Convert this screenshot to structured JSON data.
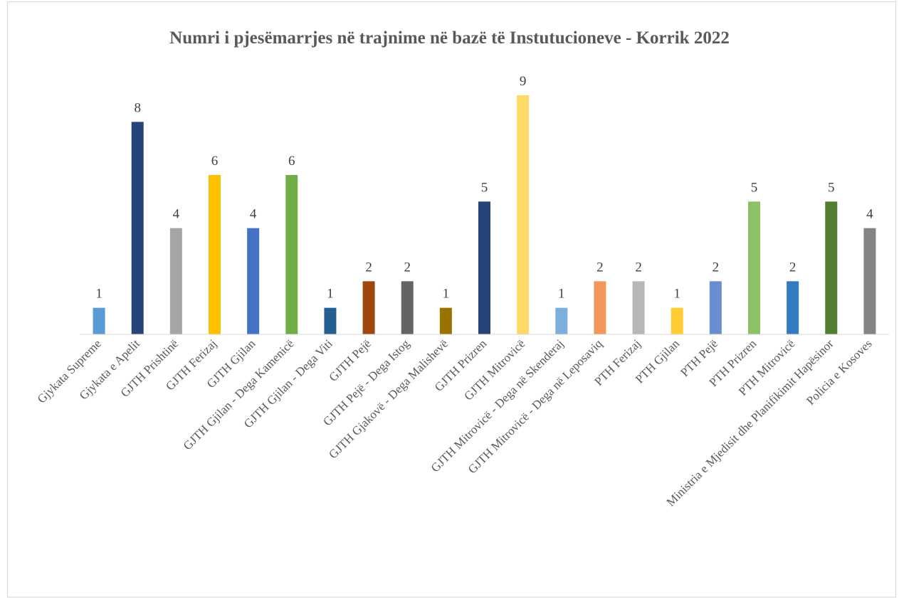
{
  "chart_data": {
    "type": "bar",
    "title": "Numri  i pjesëmarrjes  në trajnime  në bazë të Instutucioneve  - Korrik 2022",
    "xlabel": "",
    "ylabel": "",
    "ylim": [
      0,
      9
    ],
    "grid": false,
    "legend": "none",
    "categories": [
      "Gjykata Supreme",
      "Gjykata e Apelit",
      "GJTH Prishtinë",
      "GJTH Ferizaj",
      "GJTH Gjilan",
      "GJTH Gjilan - Dega Kamenicë",
      "GJTH Gjilan - Dega Viti",
      "GJTH Pejë",
      "GJTH Pejë - Dega Istog",
      "GJTH Gjakovë - Dega Malishevë",
      "GJTH Prizren",
      "GJTH Mitrovicë",
      "GJTH Mitrovicë - Dega në Skenderaj",
      "GJTH Mitrovicë - Dega në Leposaviq",
      "PTH Ferizaj",
      "PTH Gjilan",
      "PTH Pejë",
      "PTH Prizren",
      "PTH  Mitrovicë",
      "Ministria e Mjedisit dhe Planifikimit Hapësinor",
      "Policia e Kosoves"
    ],
    "values": [
      1,
      8,
      4,
      6,
      4,
      6,
      1,
      2,
      2,
      1,
      5,
      9,
      1,
      2,
      2,
      1,
      2,
      5,
      2,
      5,
      4
    ],
    "value_labels": [
      "1",
      "8",
      "4",
      "6",
      "4",
      "6",
      "1",
      "2",
      "2",
      "1",
      "5",
      "9",
      "1",
      "2",
      "2",
      "1",
      "2",
      "5",
      "2",
      "5",
      "4"
    ],
    "colors": [
      "#5b9bd5",
      "#264478",
      "#a5a5a5",
      "#ffc000",
      "#4472c4",
      "#70ad47",
      "#255e91",
      "#9e480e",
      "#636363",
      "#997300",
      "#264478",
      "#ffd966",
      "#7cafdd",
      "#f1975a",
      "#b7b7b7",
      "#ffcd33",
      "#698ed0",
      "#8cc168",
      "#327dc2",
      "#507e32",
      "#848484"
    ],
    "axis_color": "#d9d9d9"
  }
}
